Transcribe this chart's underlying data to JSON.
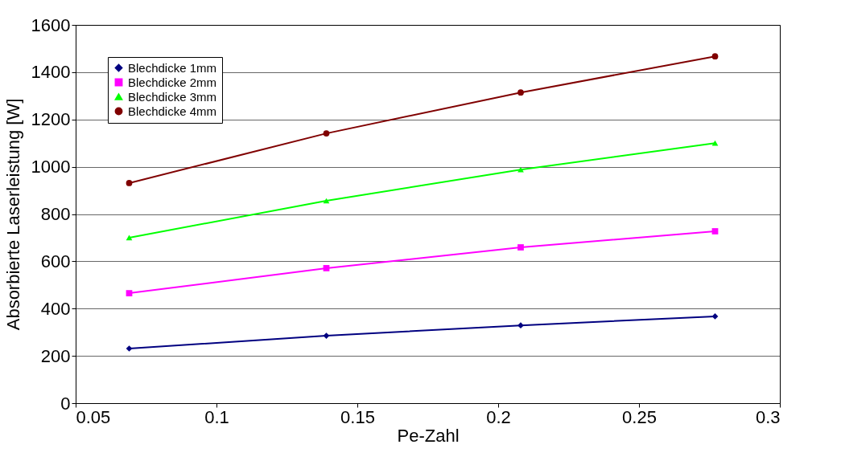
{
  "chart_data": {
    "type": "line",
    "xlabel": "Pe-Zahl",
    "ylabel": "Absorbierte Laserleistung [W]",
    "x": [
      0.069,
      0.139,
      0.208,
      0.277
    ],
    "series": [
      {
        "name": "Blechdicke 1mm",
        "color": "#000080",
        "marker": "diamond",
        "values": [
          231,
          285,
          329,
          367
        ]
      },
      {
        "name": "Blechdicke 2mm",
        "color": "#ff00ff",
        "marker": "square",
        "values": [
          465,
          571,
          659,
          727
        ]
      },
      {
        "name": "Blechdicke 3mm",
        "color": "#00ff00",
        "marker": "triangle",
        "values": [
          700,
          856,
          988,
          1100
        ]
      },
      {
        "name": "Blechdicke 4mm",
        "color": "#800000",
        "marker": "circle",
        "values": [
          931,
          1141,
          1314,
          1467
        ]
      }
    ],
    "xlim": [
      0.05,
      0.3
    ],
    "xticks": [
      0.05,
      0.1,
      0.15,
      0.2,
      0.25,
      0.3
    ],
    "ylim": [
      0,
      1600
    ],
    "yticks": [
      0,
      200,
      400,
      600,
      800,
      1000,
      1200,
      1400,
      1600
    ],
    "grid": "y",
    "legend": "top left",
    "line_style": "solid"
  }
}
